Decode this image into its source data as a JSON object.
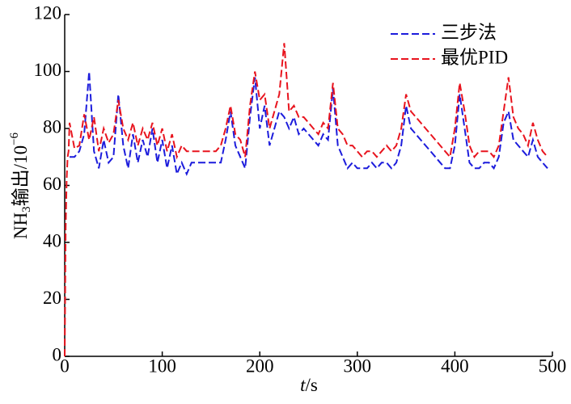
{
  "chart_data": {
    "type": "line",
    "ylabel": [
      "NH",
      "3",
      "输出/10",
      "−6"
    ],
    "xlabel": [
      "t",
      "/s"
    ],
    "x": [
      0,
      1,
      2,
      3,
      4,
      5,
      10,
      15,
      20,
      25,
      30,
      35,
      40,
      45,
      50,
      55,
      60,
      65,
      70,
      75,
      80,
      85,
      90,
      95,
      100,
      105,
      110,
      115,
      120,
      125,
      130,
      135,
      140,
      145,
      150,
      155,
      160,
      165,
      170,
      175,
      180,
      185,
      190,
      195,
      200,
      205,
      210,
      215,
      220,
      225,
      230,
      235,
      240,
      245,
      250,
      255,
      260,
      265,
      270,
      275,
      280,
      285,
      290,
      295,
      300,
      305,
      310,
      315,
      320,
      325,
      330,
      335,
      340,
      345,
      350,
      355,
      360,
      365,
      370,
      375,
      380,
      385,
      390,
      395,
      400,
      405,
      410,
      415,
      420,
      425,
      430,
      435,
      440,
      445,
      450,
      455,
      460,
      465,
      470,
      475,
      480,
      485,
      490,
      495
    ],
    "series": [
      {
        "name": "三步法",
        "color": "#1c1cdc",
        "values": [
          null,
          null,
          null,
          null,
          null,
          70,
          70,
          72,
          78,
          100,
          72,
          66,
          76,
          68,
          70,
          92,
          74,
          66,
          78,
          68,
          76,
          70,
          80,
          68,
          76,
          66,
          74,
          64,
          68,
          64,
          68,
          68,
          68,
          68,
          68,
          68,
          68,
          76,
          86,
          74,
          70,
          66,
          84,
          98,
          80,
          88,
          74,
          80,
          86,
          84,
          80,
          84,
          78,
          80,
          78,
          76,
          74,
          78,
          76,
          94,
          74,
          70,
          66,
          68,
          66,
          66,
          66,
          68,
          66,
          68,
          68,
          66,
          68,
          74,
          88,
          80,
          78,
          76,
          74,
          72,
          70,
          68,
          66,
          66,
          74,
          92,
          80,
          68,
          66,
          66,
          68,
          68,
          66,
          70,
          82,
          86,
          76,
          74,
          72,
          70,
          76,
          70,
          68,
          66
        ]
      },
      {
        "name": "最优PID",
        "color": "#e8141e",
        "values": [
          0,
          45,
          62,
          70,
          72,
          82,
          73,
          74,
          85,
          76,
          84,
          72,
          80,
          75,
          78,
          90,
          80,
          76,
          82,
          74,
          80,
          76,
          82,
          74,
          80,
          72,
          78,
          70,
          74,
          72,
          72,
          72,
          72,
          72,
          72,
          72,
          74,
          80,
          88,
          78,
          76,
          70,
          88,
          100,
          90,
          92,
          80,
          86,
          92,
          110,
          86,
          88,
          84,
          84,
          82,
          80,
          78,
          82,
          80,
          96,
          80,
          78,
          74,
          74,
          72,
          70,
          72,
          72,
          70,
          72,
          74,
          72,
          74,
          80,
          92,
          86,
          84,
          82,
          80,
          78,
          76,
          74,
          72,
          70,
          80,
          96,
          86,
          74,
          70,
          72,
          72,
          72,
          70,
          74,
          86,
          98,
          84,
          80,
          78,
          74,
          82,
          76,
          72,
          70
        ]
      }
    ],
    "xlim": [
      0,
      500
    ],
    "xticks": [
      0,
      100,
      200,
      300,
      400,
      500
    ],
    "ylim": [
      0,
      120
    ],
    "yticks": [
      0,
      20,
      40,
      60,
      80,
      100,
      120
    ],
    "legend": "top-right"
  }
}
